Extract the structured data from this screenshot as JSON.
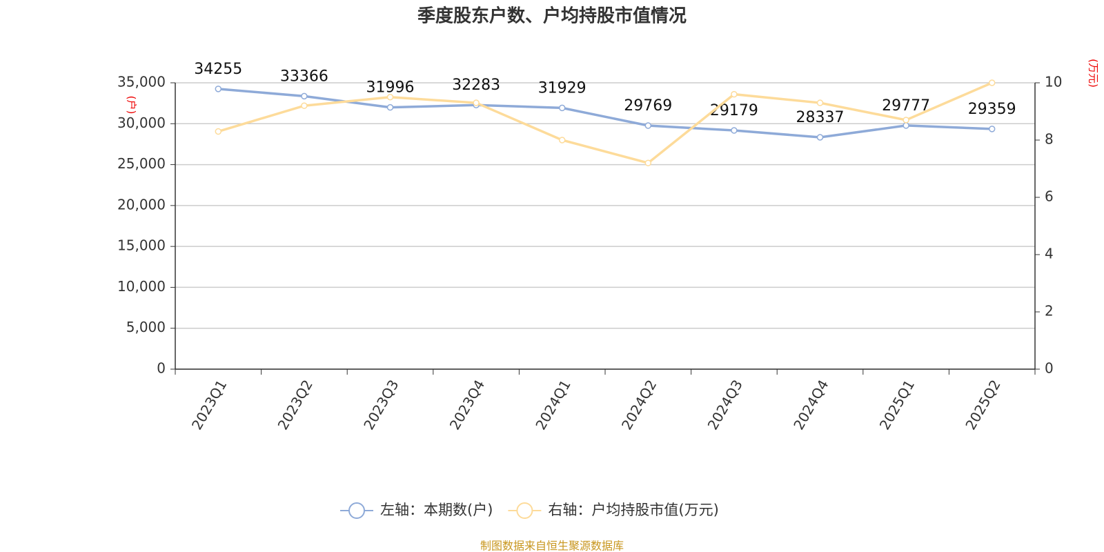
{
  "chart_data": {
    "type": "line",
    "title": "季度股东户数、户均持股市值情况",
    "y_label": "(户)",
    "y2_label": "(万元)",
    "source": "制图数据来自恒生聚源数据库",
    "categories": [
      "2023Q1",
      "2023Q2",
      "2023Q3",
      "2023Q4",
      "2024Q1",
      "2024Q2",
      "2024Q3",
      "2024Q4",
      "2025Q1",
      "2025Q2"
    ],
    "series": [
      {
        "name": "左轴：本期数(户)",
        "color": "#8eaad8",
        "values": [
          34255,
          33366,
          31996,
          32283,
          31929,
          29769,
          29179,
          28337,
          29777,
          29359
        ],
        "data_labels": true
      },
      {
        "name": "右轴：户均持股市值(万元)",
        "color": "#fddb9a",
        "axis": "y2",
        "values": [
          8.3,
          9.2,
          9.5,
          9.3,
          8.0,
          7.2,
          9.6,
          9.3,
          8.7,
          10.0
        ],
        "data_labels": false
      }
    ],
    "ylim": [
      0,
      35000
    ],
    "yticks": [
      0,
      {
        "value": 5000,
        "label": "5,000"
      },
      {
        "value": 10000,
        "label": "10,000"
      },
      {
        "value": 15000,
        "label": "15,000"
      },
      {
        "value": 20000,
        "label": "20,000"
      },
      {
        "value": 25000,
        "label": "25,000"
      },
      {
        "value": 30000,
        "label": "30,000"
      },
      {
        "value": 35000,
        "label": "35,000"
      }
    ],
    "y2lim": [
      0,
      10
    ],
    "y2ticks": [
      0,
      2,
      4,
      6,
      8,
      10
    ],
    "grid": true
  }
}
